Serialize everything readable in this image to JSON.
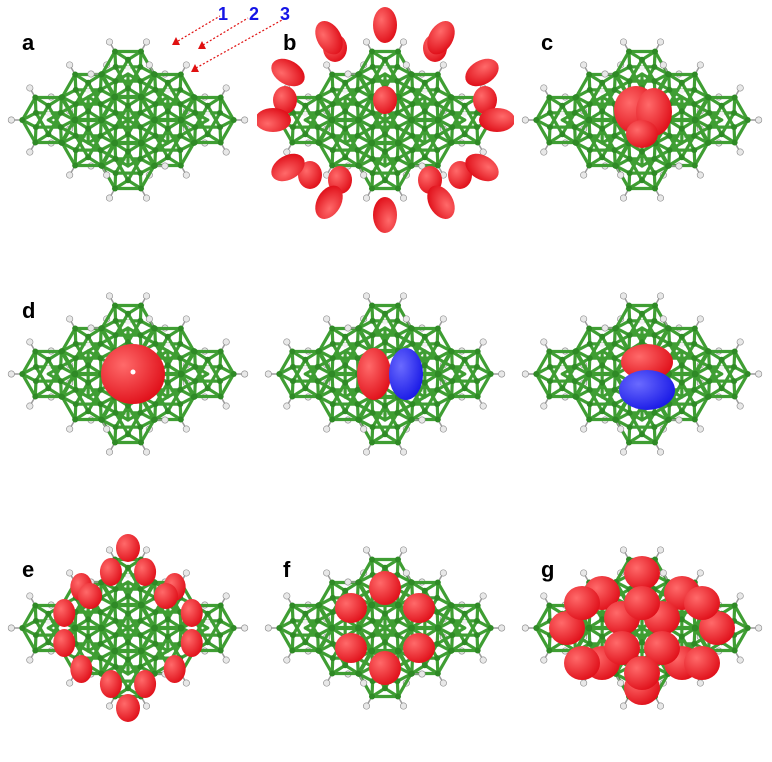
{
  "colors": {
    "background": "#ffffff",
    "bond_green": "#3f9e33",
    "atom_green": "#2f8a26",
    "hydrogen": "#e8e8e8",
    "lobe_red": "#e0101a",
    "lobe_blue": "#1a1ae6",
    "site_label_blue": "#1414e6",
    "marker_red": "#e01010"
  },
  "panels": [
    {
      "label": "a",
      "kind": "bare"
    },
    {
      "label": "b",
      "kind": "edge-lobes"
    },
    {
      "label": "c",
      "kind": "center-small"
    },
    {
      "label": "d",
      "kind": "center-sphere"
    },
    {
      "label": "",
      "kind": "center-p-x"
    },
    {
      "label": "",
      "kind": "center-p-y"
    },
    {
      "label": "e",
      "kind": "ring-lobes"
    },
    {
      "label": "f",
      "kind": "hex-blobs"
    },
    {
      "label": "g",
      "kind": "dense-blobs"
    }
  ],
  "site_labels": [
    "1",
    "2",
    "3"
  ]
}
